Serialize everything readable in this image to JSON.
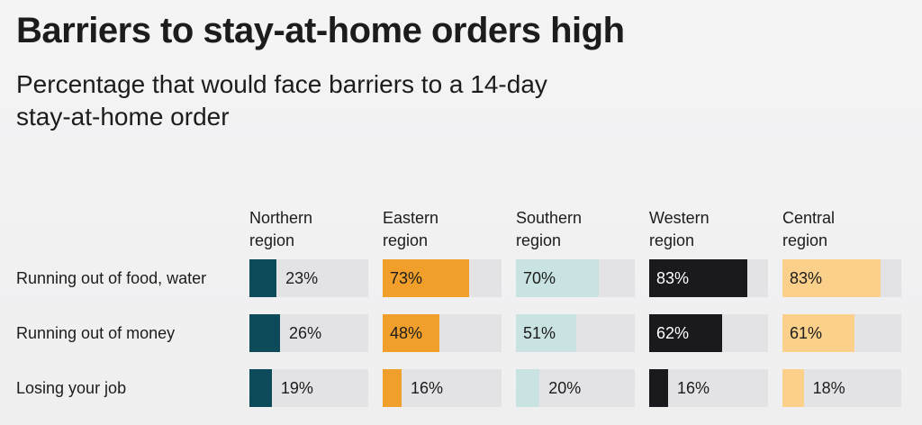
{
  "chart_data": {
    "type": "bar",
    "title": "Barriers to stay-at-home orders high",
    "subtitle": "Percentage that would face barriers to a 14-day stay-at-home order",
    "categories": [
      "Running out of food, water",
      "Running out of money",
      "Losing your job"
    ],
    "xlim": [
      0,
      100
    ],
    "series": [
      {
        "name": "Northern region",
        "color": "#0d4a5a",
        "values": [
          23,
          26,
          19
        ],
        "value_labels": [
          "23%",
          "26%",
          "19%"
        ]
      },
      {
        "name": "Eastern region",
        "color": "#f0a02a",
        "values": [
          73,
          48,
          16
        ],
        "value_labels": [
          "73%",
          "48%",
          "16%"
        ]
      },
      {
        "name": "Southern region",
        "color": "#c8e3e1",
        "values": [
          70,
          51,
          20
        ],
        "value_labels": [
          "70%",
          "51%",
          "20%"
        ]
      },
      {
        "name": "Western region",
        "color": "#1a1a1e",
        "values": [
          83,
          62,
          16
        ],
        "value_labels": [
          "83%",
          "62%",
          "16%"
        ]
      },
      {
        "name": "Central region",
        "color": "#fbd08a",
        "values": [
          83,
          61,
          18
        ],
        "value_labels": [
          "83%",
          "61%",
          "18%"
        ]
      }
    ]
  }
}
